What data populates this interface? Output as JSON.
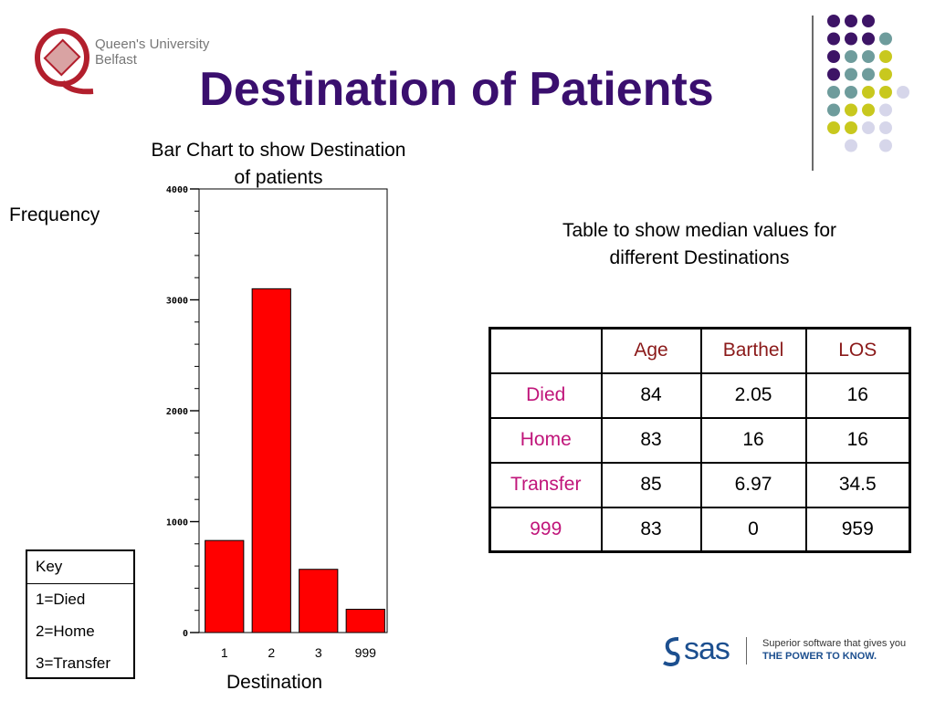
{
  "logo": {
    "line1": "Queen's University",
    "line2": "Belfast"
  },
  "page_title": "Destination of Patients",
  "chart_data": {
    "type": "bar",
    "title": "Bar Chart to show Destination of patients",
    "title_lines": [
      "Bar Chart to show Destination",
      "of patients"
    ],
    "xlabel": "Destination",
    "ylabel": "Frequency",
    "categories": [
      "1",
      "2",
      "3",
      "999"
    ],
    "values": [
      830,
      3100,
      570,
      210
    ],
    "ylim": [
      0,
      4000
    ],
    "yticks": [
      0,
      1000,
      2000,
      3000,
      4000
    ],
    "bar_color": "#ff0000"
  },
  "key": {
    "title": "Key",
    "items": [
      "1=Died",
      "2=Home",
      "3=Transfer"
    ]
  },
  "table": {
    "title_lines": [
      "Table to show median values for",
      "different Destinations"
    ],
    "headers": [
      "",
      "Age",
      "Barthel",
      "LOS"
    ],
    "rows": [
      [
        "Died",
        "84",
        "2.05",
        "16"
      ],
      [
        "Home",
        "83",
        "16",
        "16"
      ],
      [
        "Transfer",
        "85",
        "6.97",
        "34.5"
      ],
      [
        "999",
        "83",
        "0",
        "959"
      ]
    ]
  },
  "sas": {
    "wordmark": "sas",
    "tagline1": "Superior software that gives you",
    "tagline2": "THE POWER TO KNOW."
  },
  "colors": {
    "title": "#3a0f6e",
    "row_label": "#c0157a",
    "header_label": "#8b1a1a",
    "logo_red": "#b21f2d",
    "dot_purple": "#3d1466",
    "dot_teal": "#6e9c9c",
    "dot_yellow": "#c8c81e",
    "dot_lavender": "#d6d6ea"
  }
}
